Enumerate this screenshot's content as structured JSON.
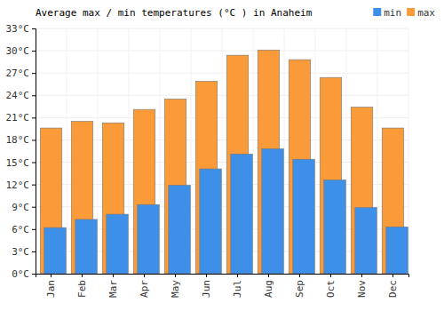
{
  "chart_data": {
    "type": "bar",
    "title": "Average max / min temperatures (°C ) in Anaheim",
    "categories": [
      "Jan",
      "Feb",
      "Mar",
      "Apr",
      "May",
      "Jun",
      "Jul",
      "Aug",
      "Sep",
      "Oct",
      "Nov",
      "Dec"
    ],
    "series": [
      {
        "name": "min",
        "color": "#3d8fe8",
        "values": [
          6.2,
          7.3,
          8.0,
          9.3,
          11.9,
          14.1,
          16.1,
          16.8,
          15.4,
          12.6,
          8.9,
          6.3
        ]
      },
      {
        "name": "max",
        "color": "#fa9a38",
        "values": [
          19.6,
          20.5,
          20.3,
          22.1,
          23.5,
          25.9,
          29.4,
          30.1,
          28.8,
          26.4,
          22.4,
          19.6
        ]
      }
    ],
    "ylim": [
      0,
      33
    ],
    "yticks": [
      {
        "value": 0,
        "label": "0°C"
      },
      {
        "value": 3,
        "label": "3°C"
      },
      {
        "value": 6,
        "label": "6°C"
      },
      {
        "value": 9,
        "label": "9°C"
      },
      {
        "value": 12,
        "label": "12°C"
      },
      {
        "value": 15,
        "label": "15°C"
      },
      {
        "value": 18,
        "label": "18°C"
      },
      {
        "value": 21,
        "label": "21°C"
      },
      {
        "value": 24,
        "label": "24°C"
      },
      {
        "value": 27,
        "label": "27°C"
      },
      {
        "value": 30,
        "label": "30°C"
      },
      {
        "value": 33,
        "label": "33°C"
      }
    ],
    "grid": true,
    "legend": "top-right"
  }
}
